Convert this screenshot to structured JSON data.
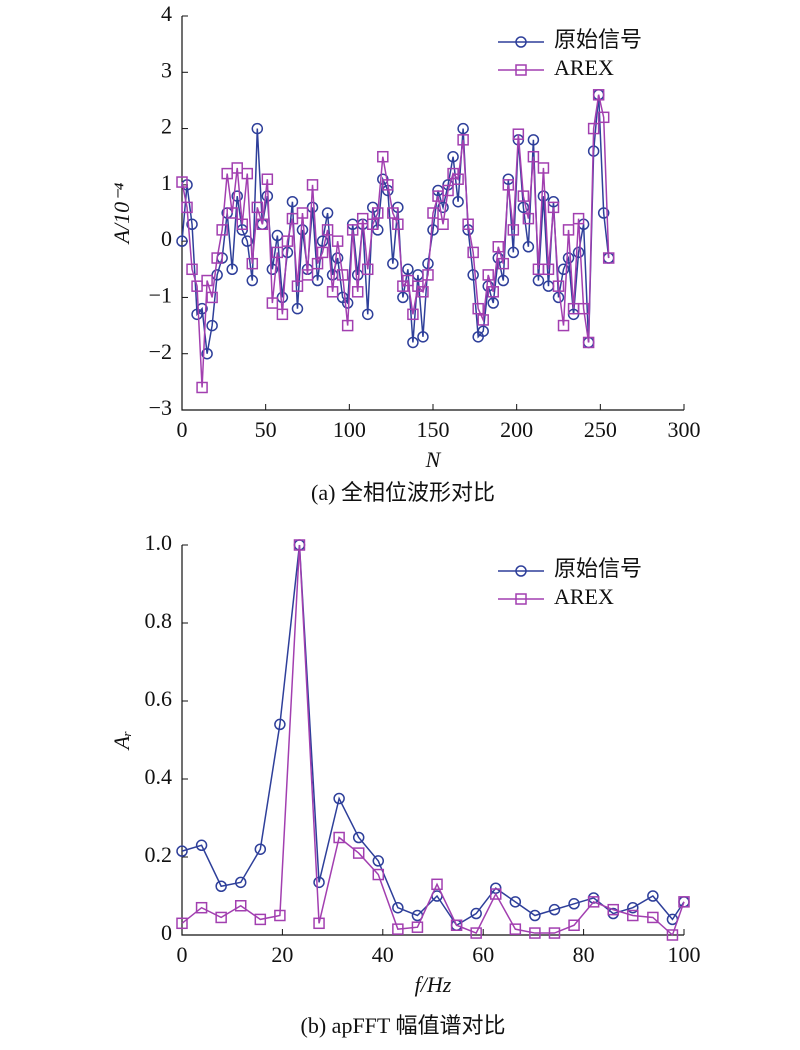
{
  "chart_data": [
    {
      "type": "line",
      "caption": "(a) 全相位波形对比",
      "xlabel": "N",
      "ylabel": "A/10⁻⁴",
      "x": [
        0,
        3,
        6,
        9,
        12,
        15,
        18,
        21,
        24,
        27,
        30,
        33,
        36,
        39,
        42,
        45,
        48,
        51,
        54,
        57,
        60,
        63,
        66,
        69,
        72,
        75,
        78,
        81,
        84,
        87,
        90,
        93,
        96,
        99,
        102,
        105,
        108,
        111,
        114,
        117,
        120,
        123,
        126,
        129,
        132,
        135,
        138,
        141,
        144,
        147,
        150,
        153,
        156,
        159,
        162,
        165,
        168,
        171,
        174,
        177,
        180,
        183,
        186,
        189,
        192,
        195,
        198,
        201,
        204,
        207,
        210,
        213,
        216,
        219,
        222,
        225,
        228,
        231,
        234,
        237,
        240,
        243,
        246,
        249,
        252,
        255
      ],
      "series": [
        {
          "name": "原始信号",
          "color": "#2e3f9a",
          "marker": "circle",
          "values": [
            0.0,
            1.0,
            0.3,
            -1.3,
            -1.2,
            -2.0,
            -1.5,
            -0.6,
            -0.3,
            0.5,
            -0.5,
            0.8,
            0.2,
            0.0,
            -0.7,
            2.0,
            0.3,
            0.8,
            -0.5,
            0.1,
            -1.0,
            -0.2,
            0.7,
            -1.2,
            0.2,
            -0.5,
            0.6,
            -0.7,
            0.0,
            0.5,
            -0.6,
            -0.3,
            -1.0,
            -1.1,
            0.3,
            -0.6,
            0.3,
            -1.3,
            0.6,
            0.2,
            1.1,
            0.9,
            -0.4,
            0.6,
            -1.0,
            -0.5,
            -1.8,
            -0.6,
            -1.7,
            -0.4,
            0.2,
            0.9,
            0.6,
            1.0,
            1.5,
            0.7,
            2.0,
            0.2,
            -0.6,
            -1.7,
            -1.6,
            -0.8,
            -1.1,
            -0.3,
            -0.7,
            1.1,
            -0.2,
            1.8,
            0.6,
            -0.1,
            1.8,
            -0.7,
            0.8,
            -0.8,
            0.7,
            -1.0,
            -0.5,
            -0.3,
            -1.3,
            -0.2,
            0.3,
            -1.8,
            1.6,
            2.6,
            0.5,
            -0.3
          ]
        },
        {
          "name": "AREX",
          "color": "#a23fb0",
          "marker": "square",
          "values": [
            1.05,
            0.6,
            -0.5,
            -0.8,
            -2.6,
            -0.7,
            -1.0,
            -0.3,
            0.2,
            1.2,
            0.5,
            1.3,
            0.3,
            1.2,
            -0.4,
            0.6,
            0.3,
            1.1,
            -1.1,
            -0.2,
            -1.3,
            0.0,
            0.4,
            -0.8,
            0.5,
            -0.6,
            1.0,
            -0.4,
            -0.2,
            0.2,
            -0.9,
            0.0,
            -0.6,
            -1.5,
            0.2,
            -0.9,
            0.4,
            -0.5,
            0.3,
            0.5,
            1.5,
            1.0,
            0.5,
            0.3,
            -0.8,
            -0.7,
            -1.3,
            -0.8,
            -0.9,
            -0.6,
            0.5,
            0.8,
            0.3,
            0.9,
            1.2,
            1.1,
            1.8,
            0.3,
            -0.2,
            -1.2,
            -1.4,
            -0.6,
            -0.9,
            -0.1,
            -0.4,
            1.0,
            0.2,
            1.9,
            0.8,
            0.4,
            1.5,
            -0.5,
            1.3,
            -0.5,
            0.6,
            -0.8,
            -1.5,
            0.2,
            -1.2,
            0.4,
            -1.2,
            -1.8,
            2.0,
            2.6,
            2.2,
            -0.3
          ]
        }
      ],
      "xlim": [
        0,
        300
      ],
      "xticks": [
        0,
        50,
        100,
        150,
        200,
        250,
        300
      ],
      "ylim": [
        -3,
        4
      ],
      "yticks": [
        {
          "value": -3,
          "label": "−3"
        },
        {
          "value": -2,
          "label": "−2"
        },
        {
          "value": -1,
          "label": "−1"
        },
        0,
        1,
        2,
        3,
        4
      ],
      "legend": "upper right"
    },
    {
      "type": "line",
      "caption": "(b) apFFT 幅值谱对比",
      "xlabel": "f/Hz",
      "ylabel": "Aᵣ",
      "x": [
        0,
        3.9,
        7.8,
        11.7,
        15.6,
        19.5,
        23.4,
        27.3,
        31.3,
        35.2,
        39.1,
        43,
        46.9,
        50.8,
        54.7,
        58.6,
        62.5,
        66.4,
        70.3,
        74.2,
        78.1,
        82,
        85.9,
        89.8,
        93.8,
        97.7,
        100
      ],
      "series": [
        {
          "name": "原始信号",
          "color": "#2e3f9a",
          "marker": "circle",
          "values": [
            0.215,
            0.23,
            0.125,
            0.135,
            0.22,
            0.54,
            1.0,
            0.135,
            0.35,
            0.25,
            0.19,
            0.07,
            0.05,
            0.1,
            0.025,
            0.055,
            0.12,
            0.085,
            0.05,
            0.065,
            0.08,
            0.095,
            0.055,
            0.07,
            0.1,
            0.04,
            0.085
          ]
        },
        {
          "name": "AREX",
          "color": "#a23fb0",
          "marker": "square",
          "values": [
            0.03,
            0.07,
            0.045,
            0.075,
            0.04,
            0.05,
            1.0,
            0.03,
            0.25,
            0.21,
            0.155,
            0.015,
            0.02,
            0.13,
            0.025,
            0.005,
            0.105,
            0.015,
            0.005,
            0.005,
            0.025,
            0.085,
            0.065,
            0.05,
            0.045,
            0.0,
            0.085
          ]
        }
      ],
      "xlim": [
        0,
        100
      ],
      "xticks": [
        0,
        20,
        40,
        60,
        80,
        100
      ],
      "ylim": [
        0,
        1
      ],
      "yticks": [
        0,
        0.2,
        0.4,
        0.6,
        0.8,
        {
          "value": 1,
          "label": "1.0"
        }
      ],
      "legend": "upper right"
    }
  ]
}
